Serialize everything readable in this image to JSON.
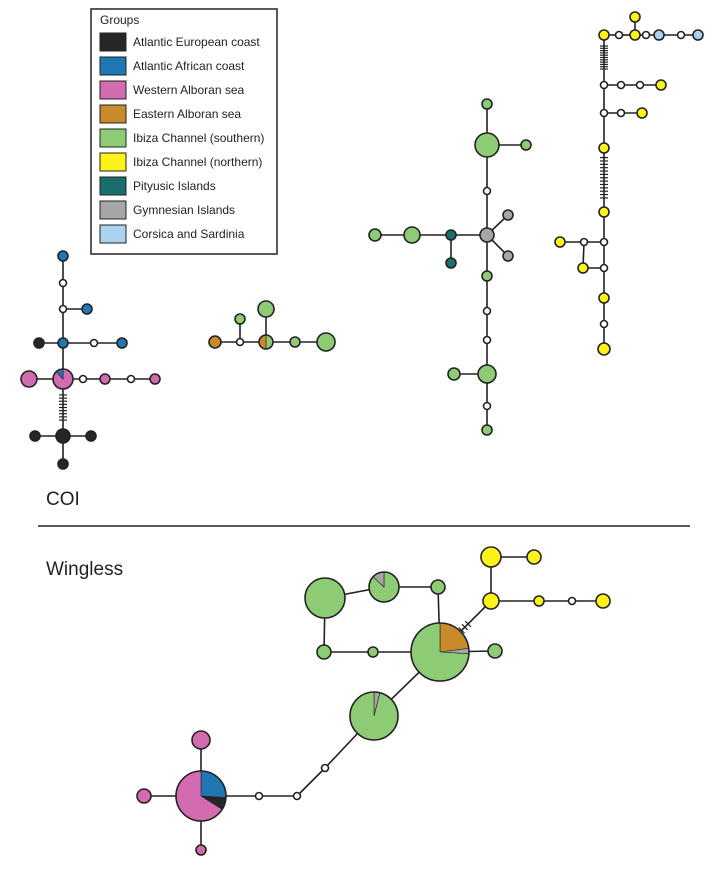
{
  "legend": {
    "title": "Groups",
    "items": [
      {
        "id": "ae",
        "label": "Atlantic European coast",
        "color": "#262626"
      },
      {
        "id": "aa",
        "label": "Atlantic African coast",
        "color": "#1f78b4"
      },
      {
        "id": "wa",
        "label": "Western Alboran sea",
        "color": "#d36bb1"
      },
      {
        "id": "ea",
        "label": "Eastern Alboran sea",
        "color": "#c98a2b"
      },
      {
        "id": "ics",
        "label": "Ibiza Channel (southern)",
        "color": "#8dcc74"
      },
      {
        "id": "icn",
        "label": "Ibiza Channel (northern)",
        "color": "#fff21b"
      },
      {
        "id": "pi",
        "label": "Pityusic Islands",
        "color": "#1a6f6e"
      },
      {
        "id": "gi",
        "label": "Gymnesian Islands",
        "color": "#a6a6a6"
      },
      {
        "id": "cs",
        "label": "Corsica and Sardinia",
        "color": "#a9d3ee"
      }
    ]
  },
  "panels": {
    "coi_label": "COI",
    "wingless_label": "Wingless"
  }
}
